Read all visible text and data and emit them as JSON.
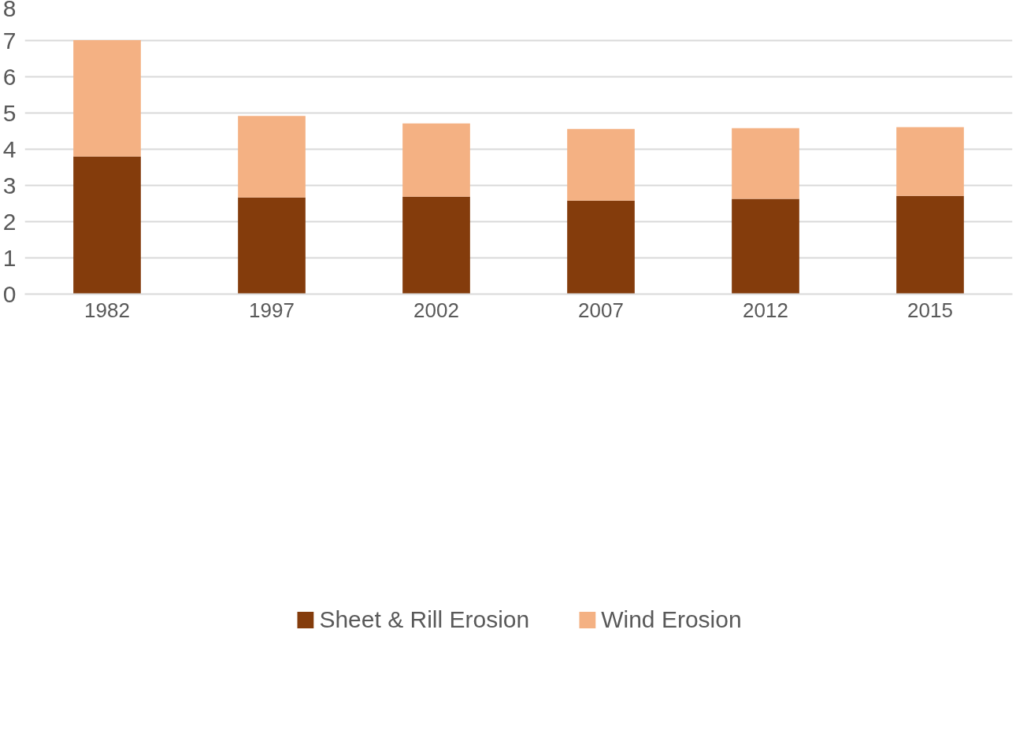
{
  "chart_data": {
    "type": "bar",
    "stacked": true,
    "categories": [
      "1982",
      "1997",
      "2002",
      "2007",
      "2012",
      "2015"
    ],
    "series": [
      {
        "name": "Sheet & Rill Erosion",
        "color": "#843c0c",
        "values": [
          3.8,
          2.67,
          2.69,
          2.58,
          2.63,
          2.71
        ]
      },
      {
        "name": "Wind Erosion",
        "color": "#f4b183",
        "values": [
          3.21,
          2.25,
          2.02,
          1.98,
          1.95,
          1.9
        ]
      }
    ],
    "ylim": [
      0,
      8
    ],
    "yticks": [
      0,
      1,
      2,
      3,
      4,
      5,
      6,
      7,
      8
    ],
    "grid": "y",
    "legend": "bottom"
  }
}
